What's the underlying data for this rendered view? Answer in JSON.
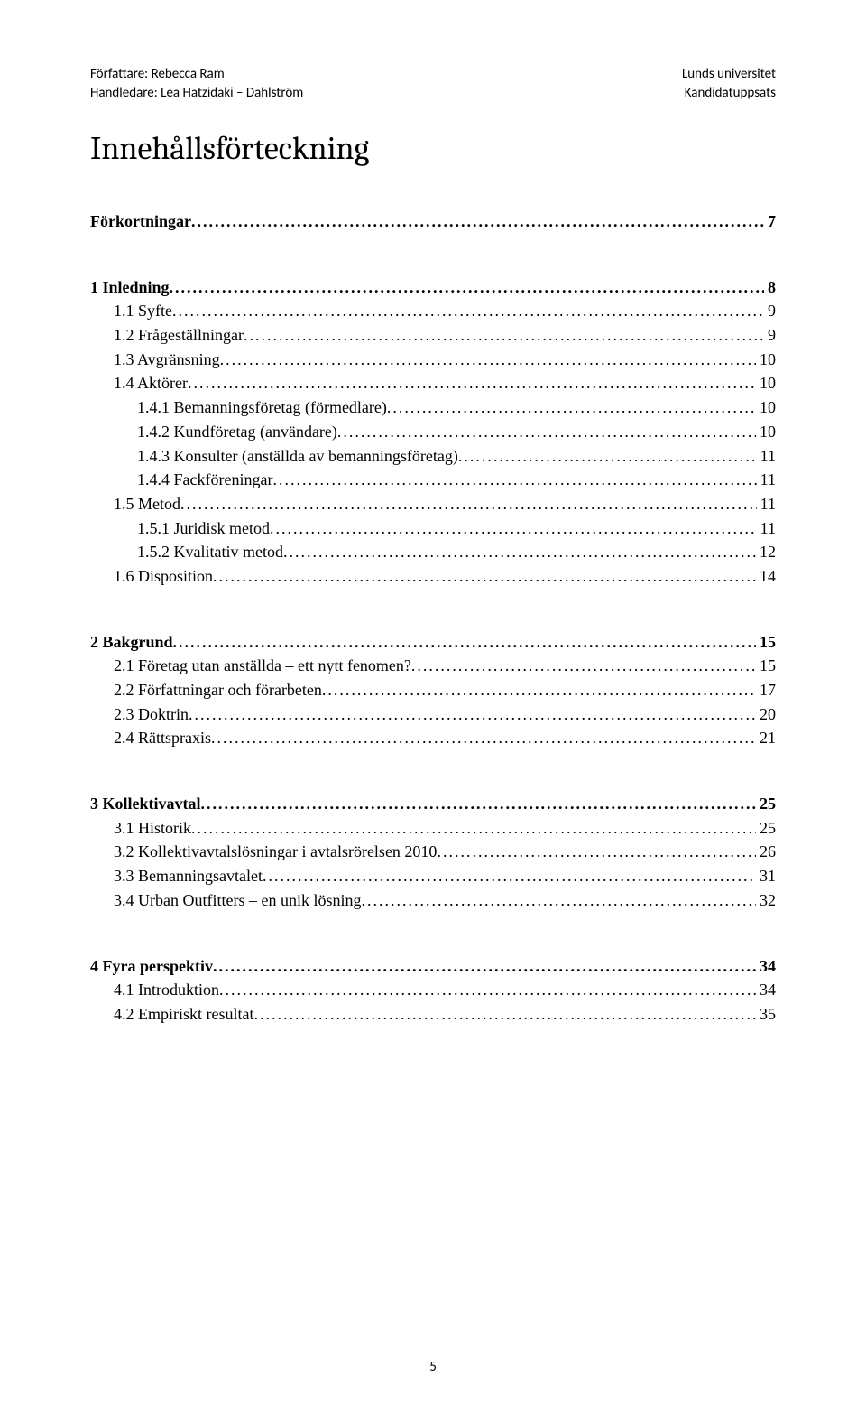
{
  "header": {
    "author_line": "Författare: Rebecca Ram",
    "supervisor_line": "Handledare: Lea Hatzidaki – Dahlström",
    "university": "Lunds universitet",
    "thesis_type": "Kandidatuppsats"
  },
  "title": "Innehållsförteckning",
  "toc": [
    {
      "label": "Förkortningar",
      "page": "7",
      "level": 1,
      "bold": true,
      "space_before": false
    },
    {
      "label": "1 Inledning",
      "page": "8",
      "level": 1,
      "bold": true,
      "space_before": true
    },
    {
      "label": "1.1 Syfte",
      "page": "9",
      "level": 2,
      "bold": false,
      "space_before": false
    },
    {
      "label": "1.2 Frågeställningar",
      "page": "9",
      "level": 2,
      "bold": false,
      "space_before": false
    },
    {
      "label": "1.3 Avgränsning",
      "page": "10",
      "level": 2,
      "bold": false,
      "space_before": false
    },
    {
      "label": "1.4 Aktörer",
      "page": "10",
      "level": 2,
      "bold": false,
      "space_before": false
    },
    {
      "label": "1.4.1 Bemanningsföretag (förmedlare)",
      "page": "10",
      "level": 3,
      "bold": false,
      "space_before": false
    },
    {
      "label": "1.4.2 Kundföretag (användare)",
      "page": "10",
      "level": 3,
      "bold": false,
      "space_before": false
    },
    {
      "label": "1.4.3 Konsulter (anställda av bemanningsföretag)",
      "page": "11",
      "level": 3,
      "bold": false,
      "space_before": false
    },
    {
      "label": "1.4.4 Fackföreningar",
      "page": "11",
      "level": 3,
      "bold": false,
      "space_before": false
    },
    {
      "label": "1.5 Metod",
      "page": "11",
      "level": 2,
      "bold": false,
      "space_before": false
    },
    {
      "label": "1.5.1  Juridisk metod",
      "page": "11",
      "level": 3,
      "bold": false,
      "space_before": false
    },
    {
      "label": "1.5.2 Kvalitativ metod",
      "page": "12",
      "level": 3,
      "bold": false,
      "space_before": false
    },
    {
      "label": "1.6 Disposition",
      "page": "14",
      "level": 2,
      "bold": false,
      "space_before": false
    },
    {
      "label": "2 Bakgrund",
      "page": "15",
      "level": 1,
      "bold": true,
      "space_before": true
    },
    {
      "label": "2.1 Företag utan anställda – ett nytt fenomen?",
      "page": "15",
      "level": 2,
      "bold": false,
      "space_before": false
    },
    {
      "label": "2.2 Författningar och förarbeten",
      "page": "17",
      "level": 2,
      "bold": false,
      "space_before": false
    },
    {
      "label": "2.3 Doktrin",
      "page": "20",
      "level": 2,
      "bold": false,
      "space_before": false
    },
    {
      "label": "2.4 Rättspraxis",
      "page": "21",
      "level": 2,
      "bold": false,
      "space_before": false
    },
    {
      "label": "3 Kollektivavtal",
      "page": "25",
      "level": 1,
      "bold": true,
      "space_before": true
    },
    {
      "label": "3.1 Historik",
      "page": "25",
      "level": 2,
      "bold": false,
      "space_before": false
    },
    {
      "label": "3.2 Kollektivavtalslösningar i avtalsrörelsen 2010",
      "page": "26",
      "level": 2,
      "bold": false,
      "space_before": false
    },
    {
      "label": "3.3 Bemanningsavtalet",
      "page": "31",
      "level": 2,
      "bold": false,
      "space_before": false
    },
    {
      "label": "3.4 Urban Outfitters – en unik lösning",
      "page": "32",
      "level": 2,
      "bold": false,
      "space_before": false
    },
    {
      "label": "4 Fyra perspektiv",
      "page": "34",
      "level": 1,
      "bold": true,
      "space_before": true
    },
    {
      "label": "4.1 Introduktion",
      "page": "34",
      "level": 2,
      "bold": false,
      "space_before": false
    },
    {
      "label": "4.2 Empiriskt resultat",
      "page": "35",
      "level": 2,
      "bold": false,
      "space_before": false
    }
  ],
  "page_number": "5"
}
